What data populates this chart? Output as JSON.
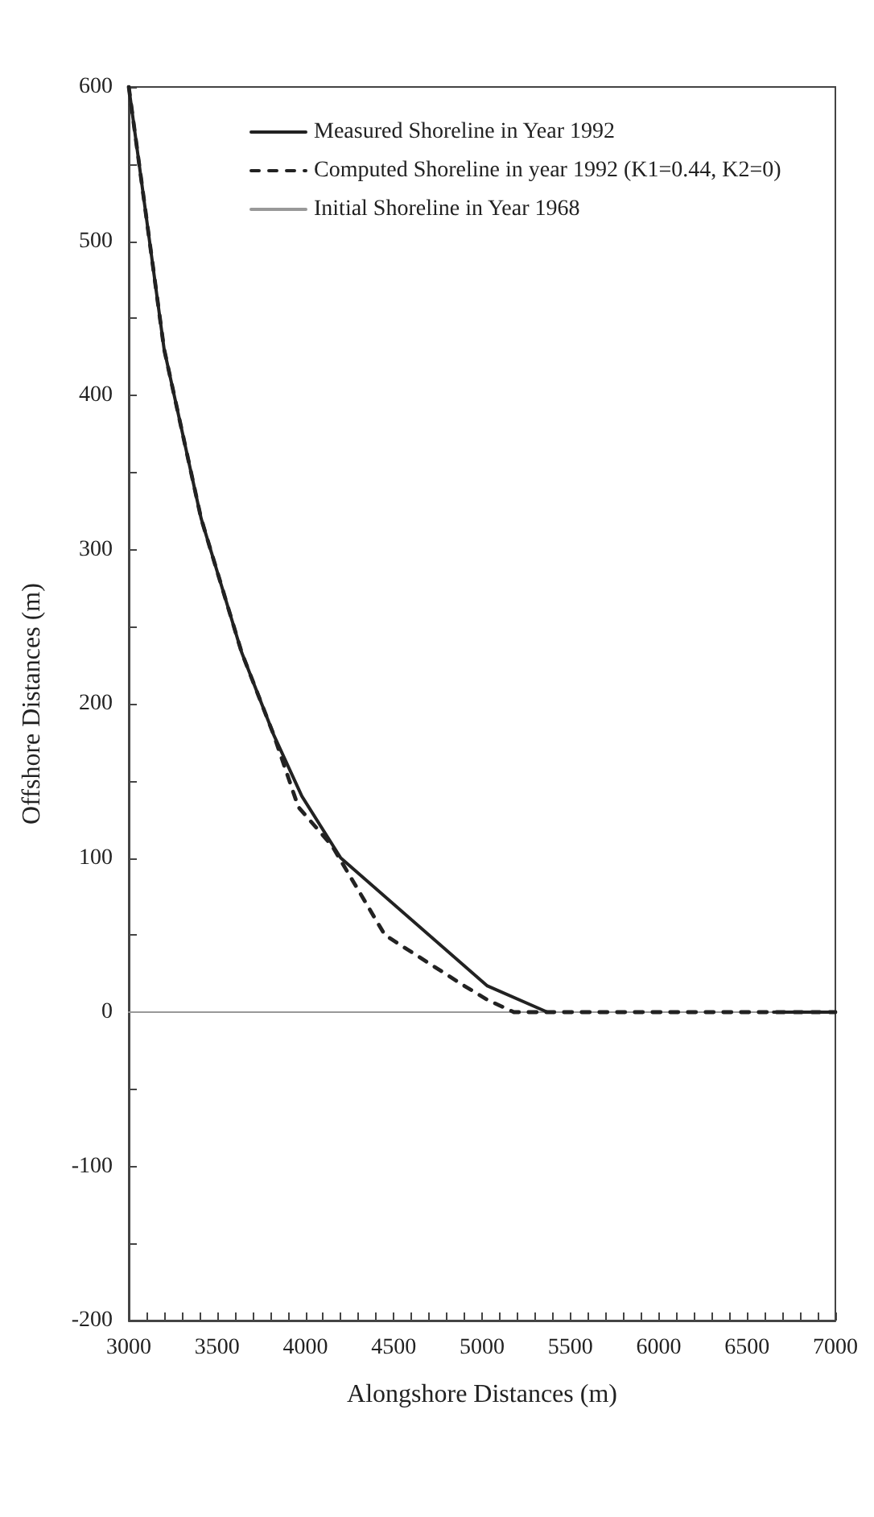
{
  "chart_data": {
    "type": "line",
    "xlabel": "Alongshore Distances (m)",
    "ylabel": "Offshore Distances (m)",
    "xlim": [
      3000,
      7000
    ],
    "xticks": [
      3000,
      {
        "value": 3100,
        "label": null
      },
      {
        "value": 3200,
        "label": null
      },
      {
        "value": 3300,
        "label": null
      },
      {
        "value": 3400,
        "label": null
      },
      3500,
      {
        "value": 3600,
        "label": null
      },
      {
        "value": 3700,
        "label": null
      },
      {
        "value": 3800,
        "label": null
      },
      {
        "value": 3900,
        "label": null
      },
      4000,
      {
        "value": 4100,
        "label": null
      },
      {
        "value": 4200,
        "label": null
      },
      {
        "value": 4300,
        "label": null
      },
      {
        "value": 4400,
        "label": null
      },
      4500,
      {
        "value": 4600,
        "label": null
      },
      {
        "value": 4700,
        "label": null
      },
      {
        "value": 4800,
        "label": null
      },
      {
        "value": 4900,
        "label": null
      },
      5000,
      {
        "value": 5100,
        "label": null
      },
      {
        "value": 5200,
        "label": null
      },
      {
        "value": 5300,
        "label": null
      },
      {
        "value": 5400,
        "label": null
      },
      5500,
      {
        "value": 5600,
        "label": null
      },
      {
        "value": 5700,
        "label": null
      },
      {
        "value": 5800,
        "label": null
      },
      {
        "value": 5900,
        "label": null
      },
      6000,
      {
        "value": 6100,
        "label": null
      },
      {
        "value": 6200,
        "label": null
      },
      {
        "value": 6300,
        "label": null
      },
      {
        "value": 6400,
        "label": null
      },
      6500,
      {
        "value": 6600,
        "label": null
      },
      {
        "value": 6700,
        "label": null
      },
      {
        "value": 6800,
        "label": null
      },
      {
        "value": 6900,
        "label": null
      },
      7000
    ],
    "ylim": [
      -200,
      600
    ],
    "yticks": [
      -200,
      {
        "value": -150,
        "label": null
      },
      -100,
      {
        "value": -50,
        "label": null
      },
      0,
      {
        "value": 50,
        "label": null
      },
      100,
      {
        "value": 150,
        "label": null
      },
      200,
      {
        "value": 250,
        "label": null
      },
      300,
      {
        "value": 350,
        "label": null
      },
      400,
      {
        "value": 450,
        "label": null
      },
      500,
      {
        "value": 550,
        "label": null
      },
      600
    ],
    "grid": false,
    "legend": "top",
    "marker": "none",
    "series": [
      {
        "name": "Measured Shoreline in Year 1992",
        "color": "#222222",
        "line_style": "solid",
        "x": [
          3000,
          3200,
          3410,
          3640,
          3820,
          3980,
          4200,
          5030,
          5370,
          6000,
          6650,
          7000
        ],
        "values": [
          600,
          430,
          320,
          233,
          180,
          140,
          100,
          17,
          0,
          null,
          0,
          0
        ]
      },
      {
        "name": "Computed Shoreline in year 1992 (K1=0.44, K2=0)",
        "color": "#222222",
        "line_style": "dashed",
        "x": [
          3000,
          3200,
          3410,
          3640,
          3820,
          3960,
          4150,
          4450,
          4900,
          5030,
          5180,
          7000
        ],
        "values": [
          600,
          430,
          320,
          233,
          180,
          133,
          108,
          50,
          17,
          8,
          0,
          0
        ]
      },
      {
        "name": "Initial Shoreline in Year 1968",
        "color": "#999999",
        "line_style": "solid",
        "x": [
          3000,
          7000
        ],
        "values": [
          0,
          0
        ]
      }
    ]
  }
}
